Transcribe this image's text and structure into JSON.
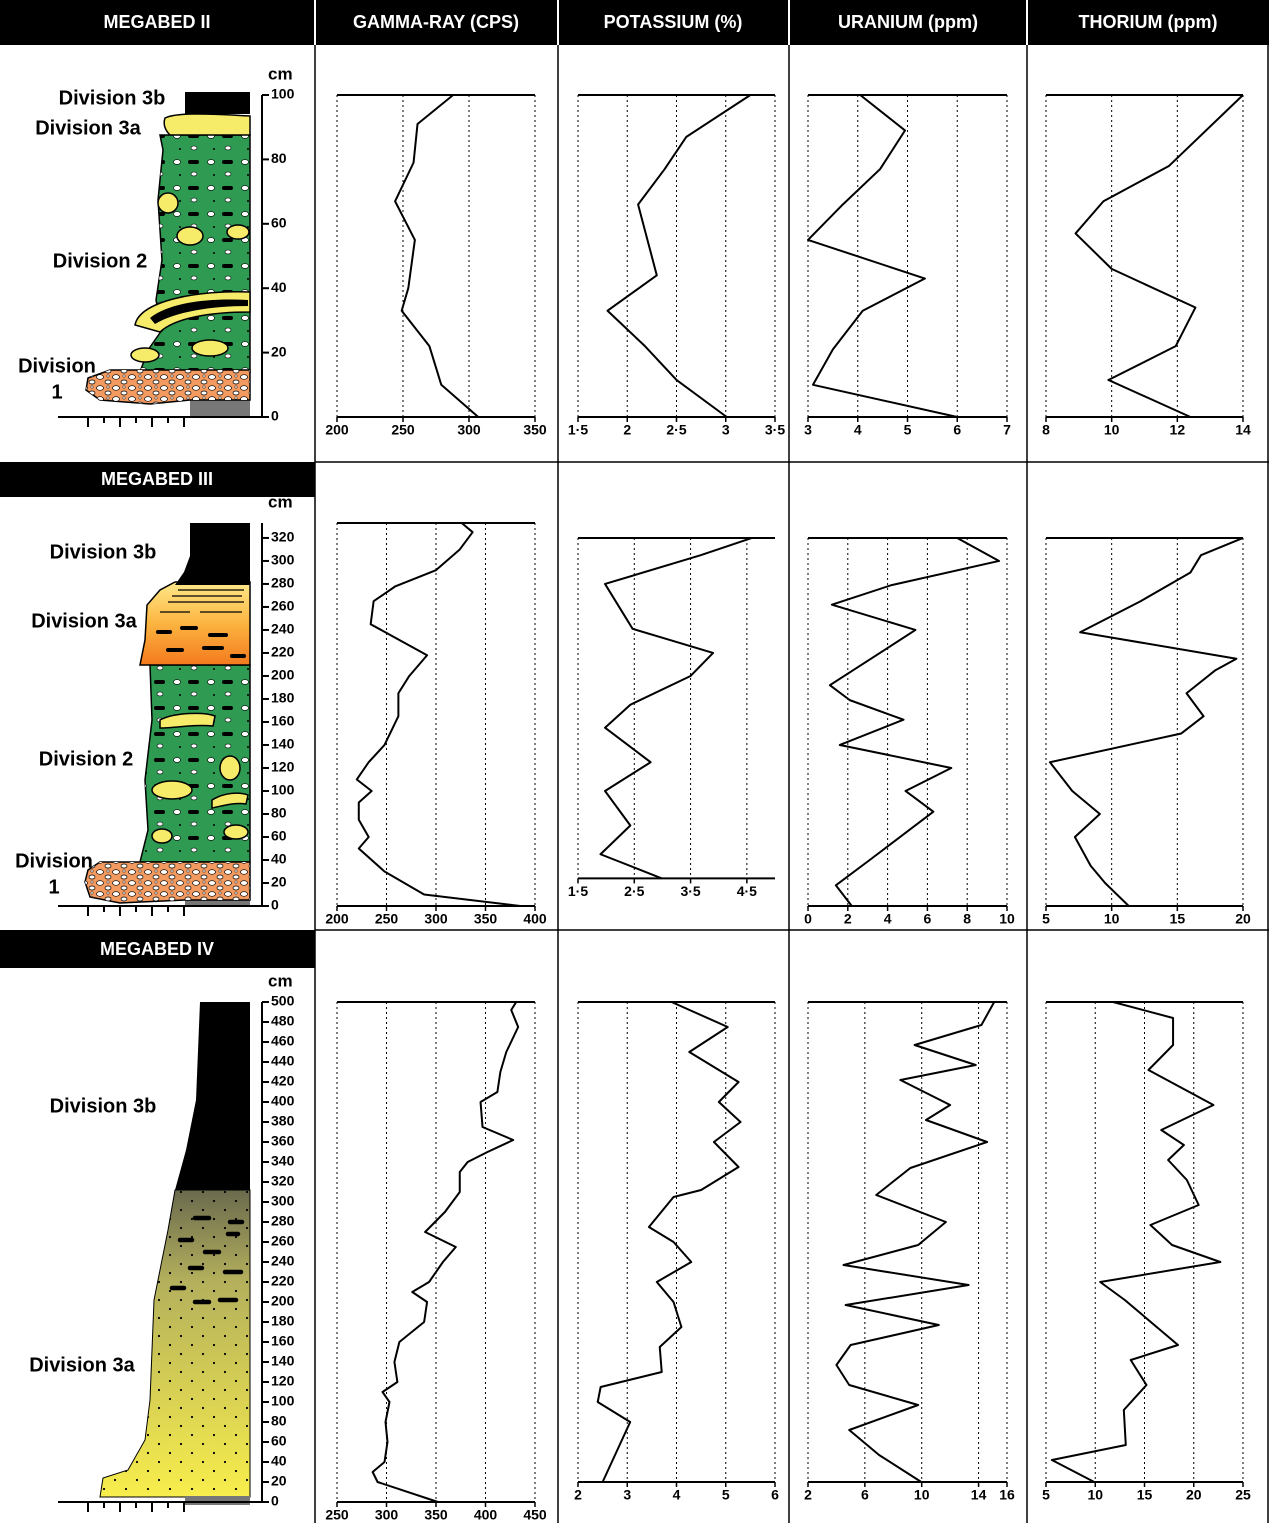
{
  "column_headers": [
    "GAMMA-RAY (CPS)",
    "POTASSIUM (%)",
    "URANIUM (ppm)",
    "THORIUM (ppm)"
  ],
  "sections": [
    {
      "title": "MEGABED II",
      "depth_unit": "cm",
      "depth_lim": [
        0,
        100
      ],
      "depth_ticks": [
        0,
        20,
        40,
        60,
        80,
        100
      ],
      "divisions": [
        [
          "Division 3b"
        ],
        [
          "Division 3a"
        ],
        [
          "Division 2"
        ],
        [
          "Division",
          "1"
        ]
      ]
    },
    {
      "title": "MEGABED III",
      "depth_unit": "cm",
      "depth_lim": [
        0,
        333
      ],
      "depth_ticks": [
        0,
        20,
        40,
        60,
        80,
        100,
        120,
        140,
        160,
        180,
        200,
        220,
        240,
        260,
        280,
        300,
        320
      ],
      "divisions": [
        [
          "Division 3b"
        ],
        [
          "Division 3a"
        ],
        [
          "Division 2"
        ],
        [
          "Division",
          "1"
        ]
      ]
    },
    {
      "title": "MEGABED IV",
      "depth_unit": "cm",
      "depth_lim": [
        0,
        500
      ],
      "depth_ticks": [
        0,
        20,
        40,
        60,
        80,
        100,
        120,
        140,
        160,
        180,
        200,
        220,
        240,
        260,
        280,
        300,
        320,
        340,
        360,
        380,
        400,
        420,
        440,
        460,
        480,
        500
      ],
      "divisions": [
        [
          "Division 3b"
        ],
        [
          "Division 3a"
        ]
      ]
    }
  ],
  "chart_data": [
    {
      "type": "line",
      "color": "#000000",
      "xlim": [
        200,
        350
      ],
      "xticks": [
        200,
        250,
        300,
        350
      ],
      "ylim": [
        0,
        100
      ],
      "depths": [
        0,
        10,
        22,
        33,
        40,
        55,
        67,
        79,
        91,
        100
      ],
      "values": [
        307,
        279,
        270,
        249,
        254,
        259,
        244,
        258,
        261,
        288
      ]
    },
    {
      "type": "line",
      "color": "#000000",
      "xlim": [
        1.5,
        3.5
      ],
      "xticks": [
        {
          "value": 1.5,
          "label": "1·5"
        },
        2,
        {
          "value": 2.5,
          "label": "2·5"
        },
        3,
        {
          "value": 3.5,
          "label": "3·5"
        }
      ],
      "ylim": [
        0,
        100
      ],
      "depths": [
        0,
        11.5,
        22,
        33,
        44,
        66,
        77,
        87,
        100
      ],
      "values": [
        3.01,
        2.5,
        2.18,
        1.8,
        2.3,
        2.11,
        2.38,
        2.6,
        3.25
      ]
    },
    {
      "type": "line",
      "color": "#000000",
      "xlim": [
        3,
        7
      ],
      "xticks": [
        3,
        4,
        5,
        6,
        7
      ],
      "ylim": [
        0,
        100
      ],
      "depths": [
        0,
        10,
        21,
        33,
        43,
        55,
        66,
        77,
        89,
        100
      ],
      "values": [
        6.0,
        3.1,
        3.5,
        4.1,
        5.35,
        3.0,
        3.7,
        4.45,
        4.95,
        4.05
      ]
    },
    {
      "type": "line",
      "color": "#000000",
      "xlim": [
        8,
        14
      ],
      "xticks": [
        8,
        10,
        12,
        14
      ],
      "ylim": [
        0,
        100
      ],
      "depths": [
        0,
        11.5,
        22,
        34,
        46,
        57,
        67,
        78,
        100
      ],
      "values": [
        12.4,
        9.9,
        11.95,
        12.55,
        10.0,
        8.9,
        9.75,
        11.75,
        14
      ]
    },
    {
      "type": "line",
      "color": "#000000",
      "xlim": [
        200,
        400
      ],
      "xticks": [
        200,
        250,
        300,
        350,
        400
      ],
      "ylim": [
        0,
        333
      ],
      "depths": [
        0,
        10,
        30,
        50,
        60,
        75,
        90,
        100,
        110,
        125,
        140,
        165,
        185,
        200,
        218,
        245,
        265,
        278,
        292,
        310,
        325,
        333
      ],
      "values": [
        385,
        288,
        248,
        222,
        232,
        222,
        222,
        235,
        220,
        232,
        248,
        262,
        262,
        273,
        291,
        234,
        237,
        259,
        300,
        324,
        337,
        326
      ]
    },
    {
      "type": "line",
      "color": "#000000",
      "xlim": [
        1.5,
        5
      ],
      "xticks": [
        {
          "value": 1.5,
          "label": "1·5"
        },
        {
          "value": 2.5,
          "label": "2·5"
        },
        {
          "value": 3.5,
          "label": "3·5"
        },
        {
          "value": 4.5,
          "label": "4·5"
        }
      ],
      "ylim": [
        24,
        320
      ],
      "depths": [
        24,
        45,
        70,
        100,
        125,
        155,
        175,
        200,
        220,
        241,
        280,
        305,
        320
      ],
      "values": [
        2.99,
        1.9,
        2.43,
        1.98,
        2.79,
        1.98,
        2.43,
        3.5,
        3.9,
        2.47,
        1.98,
        3.68,
        4.59
      ]
    },
    {
      "type": "line",
      "color": "#000000",
      "xlim": [
        0,
        10
      ],
      "xticks": [
        0,
        2,
        4,
        6,
        8,
        10
      ],
      "ylim": [
        0,
        320
      ],
      "depths": [
        0,
        18,
        40,
        82,
        100,
        120,
        140,
        162,
        179,
        192,
        240,
        262,
        279,
        300,
        320
      ],
      "values": [
        2.2,
        1.4,
        3.1,
        6.3,
        4.9,
        7.2,
        1.6,
        4.8,
        2.1,
        1.1,
        5.4,
        1.2,
        4.2,
        9.6,
        7.5
      ]
    },
    {
      "type": "line",
      "color": "#000000",
      "xlim": [
        5,
        20
      ],
      "xticks": [
        5,
        10,
        15,
        20
      ],
      "ylim": [
        0,
        320
      ],
      "depths": [
        0,
        20,
        35,
        60,
        80,
        100,
        125,
        150,
        165,
        185,
        205,
        215,
        238,
        265,
        290,
        305,
        320
      ],
      "values": [
        11.3,
        9.5,
        8.4,
        7.2,
        9.1,
        7.0,
        5.3,
        15.3,
        17,
        15.7,
        17.9,
        19.5,
        7.6,
        12.2,
        16.0,
        16.8,
        20
      ]
    },
    {
      "type": "line",
      "color": "#000000",
      "xlim": [
        250,
        450
      ],
      "xticks": [
        250,
        300,
        350,
        400,
        450
      ],
      "ylim": [
        0,
        500
      ],
      "depths": [
        0,
        20,
        30,
        40,
        60,
        80,
        100,
        110,
        120,
        140,
        160,
        180,
        200,
        210,
        220,
        240,
        255,
        270,
        290,
        310,
        330,
        340,
        350,
        362,
        375,
        400,
        410,
        430,
        450,
        475,
        492,
        500
      ],
      "values": [
        352,
        291,
        286,
        298,
        301,
        299,
        303,
        296,
        311,
        308,
        313,
        338,
        341,
        326,
        343,
        357,
        370,
        339,
        359,
        374,
        374,
        382,
        402,
        428,
        397,
        395,
        412,
        415,
        421,
        433,
        426,
        431
      ]
    },
    {
      "type": "line",
      "color": "#000000",
      "xlim": [
        2,
        6
      ],
      "xticks": [
        2,
        3,
        4,
        5,
        6
      ],
      "ylim": [
        20,
        500
      ],
      "depths": [
        20,
        80,
        100,
        115,
        130,
        155,
        175,
        200,
        220,
        240,
        260,
        275,
        305,
        312,
        335,
        360,
        380,
        400,
        420,
        450,
        475,
        500
      ],
      "values": [
        2.5,
        3.06,
        2.4,
        2.46,
        3.7,
        3.66,
        4.1,
        3.94,
        3.6,
        4.3,
        3.94,
        3.44,
        3.94,
        4.5,
        5.26,
        4.76,
        5.3,
        4.86,
        5.26,
        4.26,
        5.04,
        3.9
      ]
    },
    {
      "type": "line",
      "color": "#000000",
      "xlim": [
        2,
        16
      ],
      "xticks": [
        2,
        6,
        10,
        14,
        16
      ],
      "ylim": [
        20,
        500
      ],
      "depths": [
        20,
        47,
        72,
        97,
        117,
        137,
        157,
        177,
        197,
        217,
        237,
        257,
        280,
        307,
        334,
        360,
        382,
        397,
        422,
        437,
        457,
        477,
        500
      ],
      "values": [
        9.97,
        7.0,
        4.9,
        9.75,
        4.9,
        4.0,
        5.0,
        11.2,
        4.65,
        13.3,
        4.5,
        9.75,
        11.7,
        6.8,
        9.2,
        14.6,
        10.3,
        12.0,
        8.5,
        13.8,
        9.5,
        14.2,
        15.1
      ]
    },
    {
      "type": "line",
      "color": "#000000",
      "xlim": [
        5,
        25
      ],
      "xticks": [
        5,
        10,
        15,
        20,
        25
      ],
      "ylim": [
        20,
        500
      ],
      "depths": [
        20,
        42,
        57,
        92,
        117,
        142,
        157,
        202,
        220,
        240,
        257,
        277,
        297,
        322,
        342,
        357,
        372,
        397,
        432,
        457,
        484,
        500
      ],
      "values": [
        9.9,
        5.6,
        13.1,
        12.9,
        15.2,
        13.6,
        18.4,
        13.0,
        10.5,
        22.7,
        17.8,
        15.6,
        20.5,
        19.3,
        17.4,
        19.0,
        16.7,
        22.0,
        15.4,
        17.9,
        17.9,
        11.8
      ]
    }
  ]
}
